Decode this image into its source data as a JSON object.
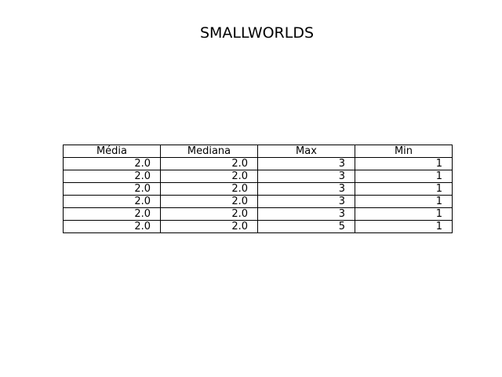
{
  "chart_data": {
    "type": "table",
    "title": "SMALLWORLDS",
    "columns": [
      "Média",
      "Mediana",
      "Max",
      "Min"
    ],
    "rows": [
      [
        "2.0",
        "2.0",
        "3",
        "1"
      ],
      [
        "2.0",
        "2.0",
        "3",
        "1"
      ],
      [
        "2.0",
        "2.0",
        "3",
        "1"
      ],
      [
        "2.0",
        "2.0",
        "3",
        "1"
      ],
      [
        "2.0",
        "2.0",
        "3",
        "1"
      ],
      [
        "2.0",
        "2.0",
        "5",
        "1"
      ]
    ]
  }
}
